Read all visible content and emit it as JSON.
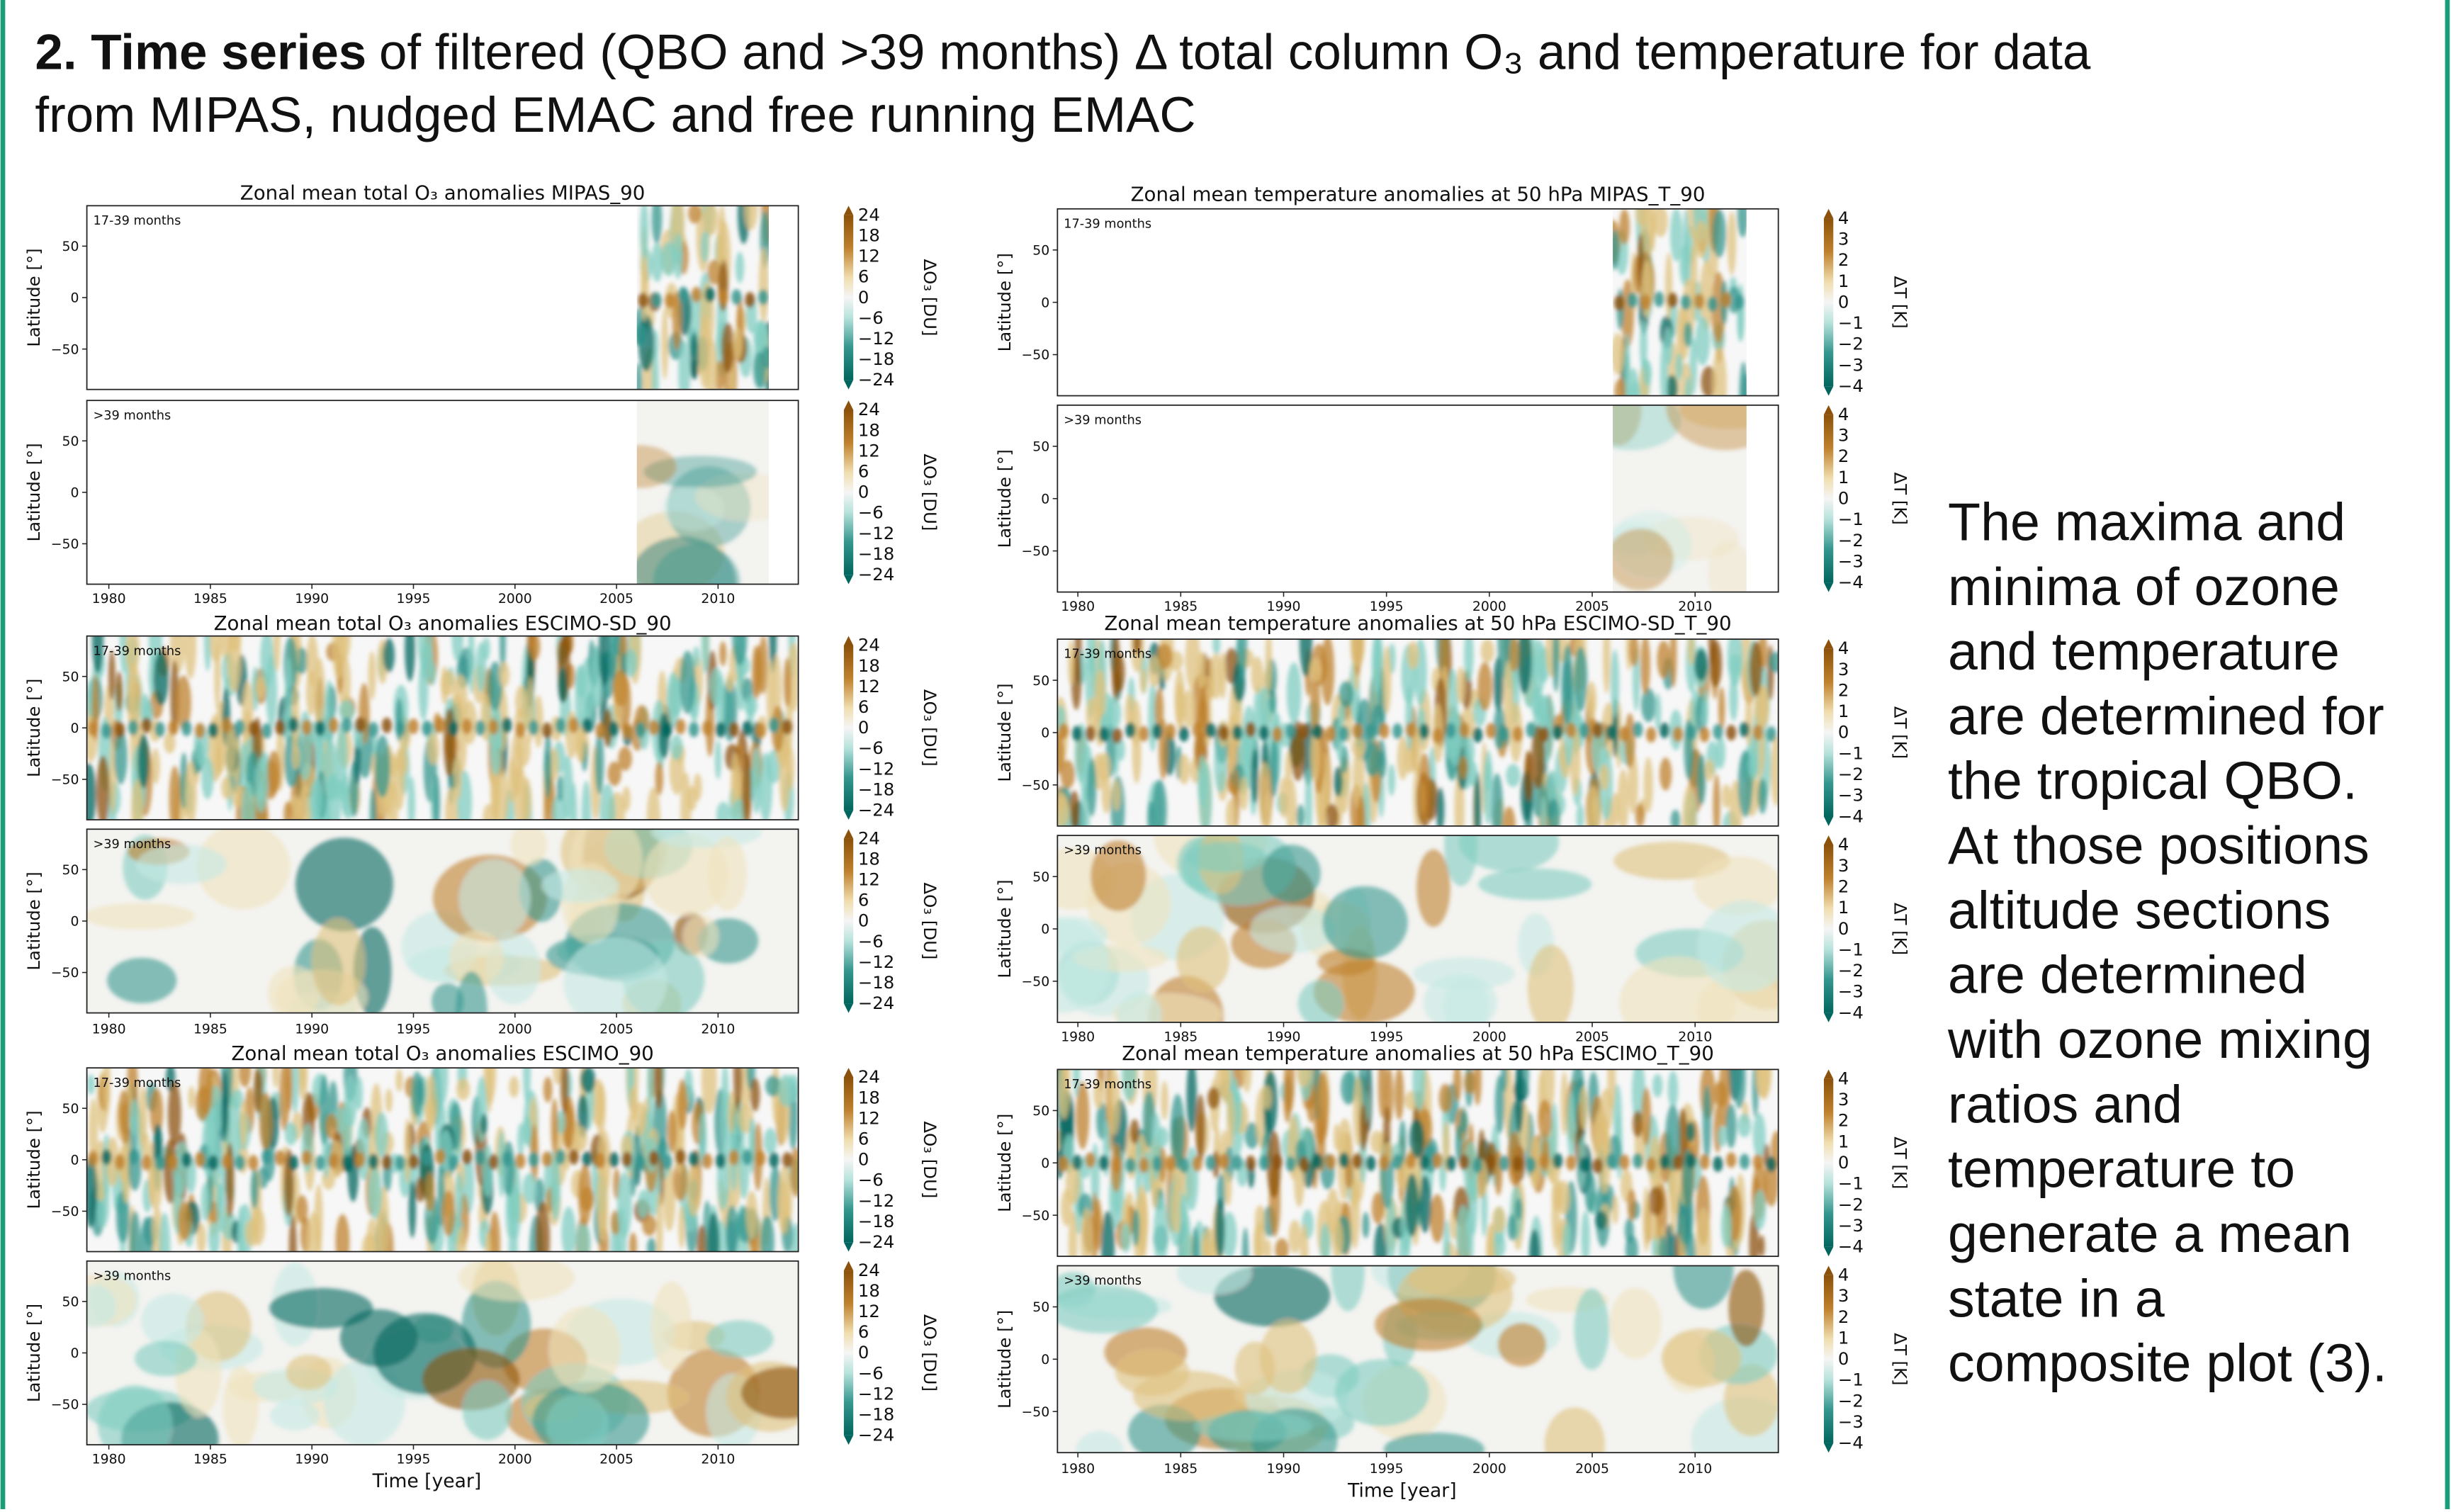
{
  "header": {
    "title_bold": "2. Time series",
    "title_rest": "of filtered (QBO and >39 months) Δ total column O₃ and temperature for data",
    "title_line2": "from MIPAS, nudged EMAC and free running EMAC"
  },
  "axes": {
    "y_label": "Latitude [°]",
    "lat_ticks": [
      "50",
      "0",
      "−50"
    ],
    "year_ticks": [
      "1980",
      "1985",
      "1990",
      "1995",
      "2000",
      "2005",
      "2010"
    ],
    "x_label": "Time [year]",
    "sub_labels": [
      "17-39 months",
      ">39 months"
    ]
  },
  "colorbars": {
    "o3": {
      "label": "ΔO₃ [DU]",
      "ticks": [
        "24",
        "18",
        "12",
        "6",
        "0",
        "−6",
        "−12",
        "−18",
        "−24"
      ]
    },
    "t": {
      "label": "ΔT [K]",
      "ticks": [
        "4",
        "3",
        "2",
        "1",
        "0",
        "−1",
        "−2",
        "−3",
        "−4"
      ]
    }
  },
  "o3_panels": [
    "Zonal mean total O₃ anomalies MIPAS_90",
    "Zonal mean total O₃ anomalies ESCIMO-SD_90",
    "Zonal mean total O₃ anomalies ESCIMO_90"
  ],
  "temperature_panels": [
    "Zonal mean temperature anomalies at 50 hPa MIPAS_T_90",
    "Zonal mean temperature anomalies at 50 hPa ESCIMO-SD_T_90",
    "Zonal mean temperature anomalies at 50 hPa ESCIMO_T_90"
  ],
  "side_text": [
    "The maxima and",
    "minima of ozone",
    "and temperature",
    "are determined for",
    "the tropical QBO.",
    "At those positions",
    "altitude sections",
    "are determined",
    "with ozone mixing",
    "ratios and",
    "temperature to",
    "generate a  mean",
    "state in a",
    "composite plot (3)."
  ]
}
